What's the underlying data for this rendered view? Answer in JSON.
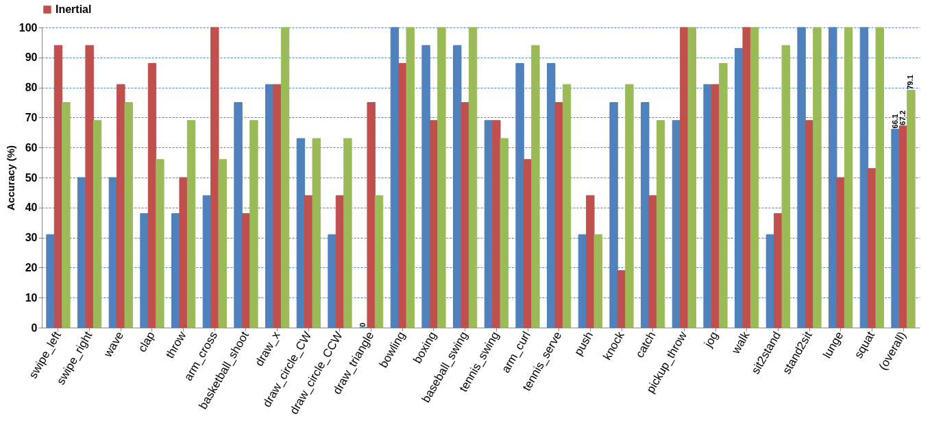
{
  "chart_data": {
    "type": "bar",
    "ylabel": "Accuracy (%)",
    "categories": [
      "swipe_left",
      "swipe_right",
      "wave",
      "clap",
      "throw",
      "arm_cross",
      "basketball_shoot",
      "draw_x",
      "draw_circle_CW",
      "draw_circle_CCW",
      "draw_triangle",
      "bowling",
      "boxing",
      "baseball_swing",
      "tennis_swing",
      "arm_curl",
      "tennis_serve",
      "push",
      "knock",
      "catch",
      "pickup_throw",
      "jog",
      "walk",
      "sit2stand",
      "stand2sit",
      "lunge",
      "squat",
      "(overall)"
    ],
    "series": [
      {
        "color": "#4f81bd",
        "values": [
          31,
          50,
          50,
          38,
          38,
          44,
          75,
          81,
          63,
          31,
          0,
          100,
          94,
          94,
          69,
          88,
          88,
          31,
          75,
          75,
          69,
          81,
          93,
          31,
          100,
          100,
          100,
          66.1
        ],
        "value_labels": [
          null,
          null,
          null,
          null,
          null,
          null,
          null,
          null,
          null,
          null,
          "0",
          null,
          null,
          null,
          null,
          null,
          null,
          null,
          null,
          null,
          null,
          null,
          null,
          null,
          null,
          null,
          null,
          "66.1"
        ]
      },
      {
        "name": "Inertial",
        "color": "#c0504d",
        "values": [
          94,
          94,
          81,
          88,
          50,
          100,
          38,
          81,
          44,
          44,
          75,
          88,
          69,
          75,
          69,
          56,
          75,
          44,
          19,
          44,
          100,
          81,
          100,
          38,
          69,
          50,
          53,
          67.2
        ],
        "value_labels": [
          null,
          null,
          null,
          null,
          null,
          null,
          null,
          null,
          null,
          null,
          null,
          null,
          null,
          null,
          null,
          null,
          null,
          null,
          null,
          null,
          null,
          null,
          null,
          null,
          null,
          null,
          null,
          "67.2"
        ]
      },
      {
        "color": "#9bbb59",
        "values": [
          75,
          69,
          75,
          56,
          69,
          56,
          69,
          100,
          63,
          63,
          44,
          100,
          100,
          100,
          63,
          94,
          81,
          31,
          81,
          69,
          100,
          88,
          100,
          94,
          100,
          100,
          100,
          79.1
        ],
        "value_labels": [
          null,
          null,
          null,
          null,
          null,
          null,
          null,
          null,
          null,
          null,
          null,
          null,
          null,
          null,
          null,
          null,
          null,
          null,
          null,
          null,
          null,
          null,
          null,
          null,
          null,
          null,
          null,
          "79.1"
        ]
      }
    ],
    "ylim": [
      0,
      100
    ],
    "yticks": [
      0,
      10,
      20,
      30,
      40,
      50,
      60,
      70,
      80,
      90,
      100
    ],
    "grid": "y",
    "legend": "top"
  }
}
